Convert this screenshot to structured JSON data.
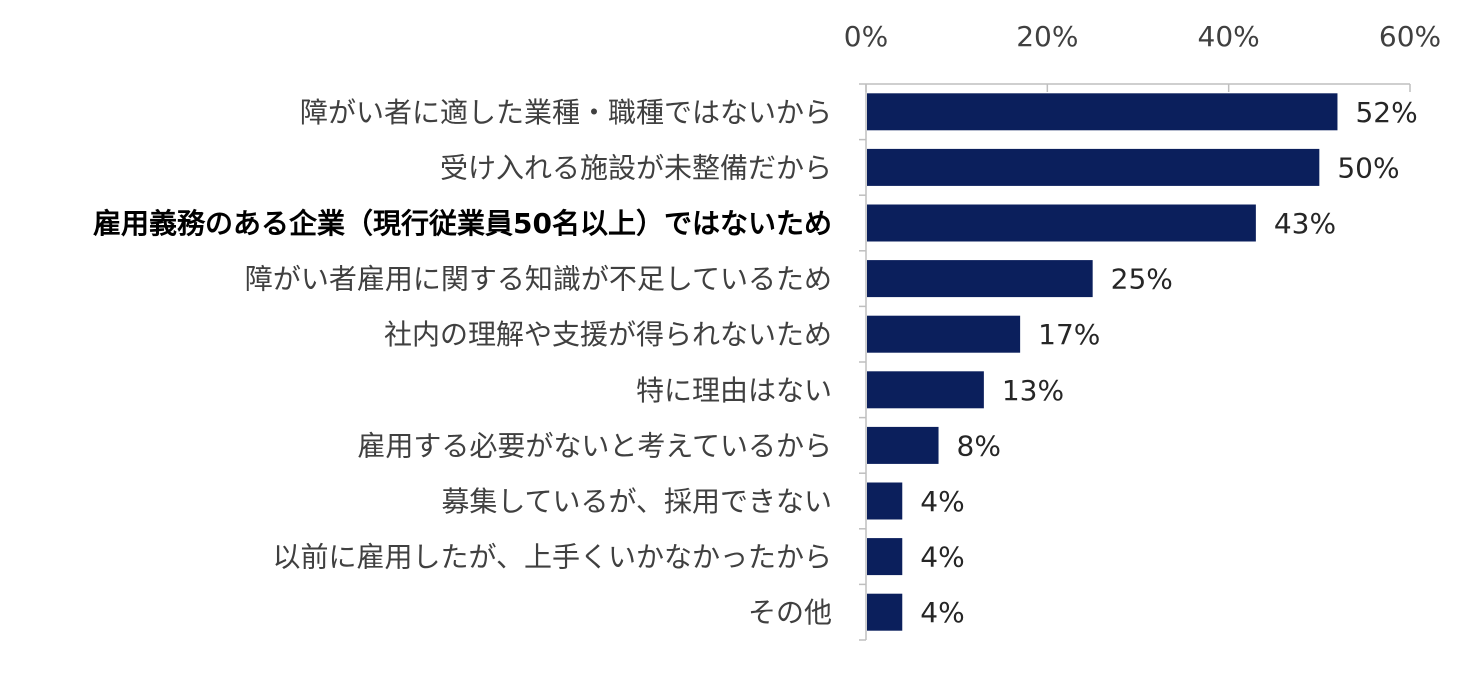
{
  "chart_data": {
    "type": "bar",
    "orientation": "horizontal",
    "categories": [
      "障がい者に適した業種・職種ではないから",
      "受け入れる施設が未整備だから",
      "雇用義務のある企業（現行従業員50名以上）ではないため",
      "障がい者雇用に関する知識が不足しているため",
      "社内の理解や支援が得られないため",
      "特に理由はない",
      "雇用する必要がないと考えているから",
      "募集しているが、採用できない",
      "以前に雇用したが、上手くいかなかったから",
      "その他"
    ],
    "values": [
      52,
      50,
      43,
      25,
      17,
      13,
      8,
      4,
      4,
      4
    ],
    "data_labels": [
      "52%",
      "50%",
      "43%",
      "25%",
      "17%",
      "13%",
      "8%",
      "4%",
      "4%",
      "4%"
    ],
    "emphasized_category_index": 2,
    "xlim": [
      0,
      60
    ],
    "x_ticks": [
      0,
      20,
      40,
      60
    ],
    "x_tick_labels": [
      "0%",
      "20%",
      "40%",
      "60%"
    ],
    "x_axis_position": "top",
    "bar_color": "#0b1f5c",
    "grid": false,
    "legend": "none"
  }
}
